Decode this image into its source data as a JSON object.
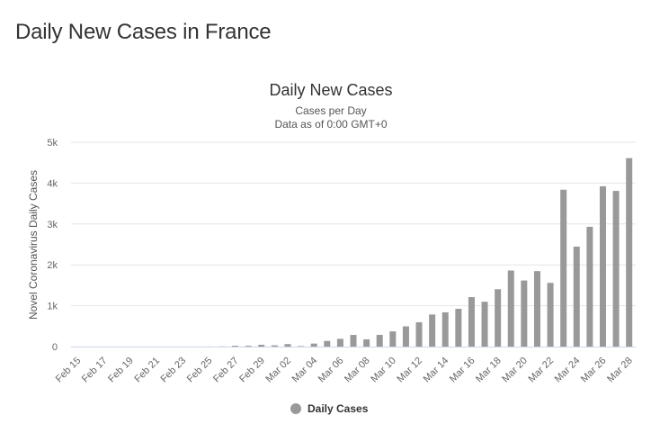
{
  "page": {
    "title": "Daily New Cases in France"
  },
  "chart_data": {
    "type": "bar",
    "title": "Daily New Cases",
    "subtitle": [
      "Cases per Day",
      "Data as of 0:00 GMT+0"
    ],
    "ylabel": "Novel Coronavirus Daily Cases",
    "xlabel": "",
    "ylim": [
      0,
      5000
    ],
    "yticks": [
      0,
      1000,
      2000,
      3000,
      4000,
      5000
    ],
    "ytick_labels": [
      "0",
      "1k",
      "2k",
      "3k",
      "4k",
      "5k"
    ],
    "grid": true,
    "legend": {
      "position": "bottom-center",
      "entries": [
        "Daily Cases"
      ]
    },
    "bar_color": "#999999",
    "categories": [
      "Feb 15",
      "Feb 16",
      "Feb 17",
      "Feb 18",
      "Feb 19",
      "Feb 20",
      "Feb 21",
      "Feb 22",
      "Feb 23",
      "Feb 24",
      "Feb 25",
      "Feb 26",
      "Feb 27",
      "Feb 28",
      "Feb 29",
      "Mar 01",
      "Mar 02",
      "Mar 03",
      "Mar 04",
      "Mar 05",
      "Mar 06",
      "Mar 07",
      "Mar 08",
      "Mar 09",
      "Mar 10",
      "Mar 11",
      "Mar 12",
      "Mar 13",
      "Mar 14",
      "Mar 15",
      "Mar 16",
      "Mar 17",
      "Mar 18",
      "Mar 19",
      "Mar 20",
      "Mar 21",
      "Mar 22",
      "Mar 23",
      "Mar 24",
      "Mar 25",
      "Mar 26",
      "Mar 27",
      "Mar 28"
    ],
    "visible_tick_labels": [
      "Feb 15",
      "Feb 17",
      "Feb 19",
      "Feb 21",
      "Feb 23",
      "Feb 25",
      "Feb 27",
      "Feb 29",
      "Mar 02",
      "Mar 04",
      "Mar 06",
      "Mar 08",
      "Mar 10",
      "Mar 12",
      "Mar 14",
      "Mar 16",
      "Mar 18",
      "Mar 20",
      "Mar 22",
      "Mar 24",
      "Mar 26",
      "Mar 28"
    ],
    "series": [
      {
        "name": "Daily Cases",
        "values": [
          0,
          0,
          0,
          0,
          0,
          0,
          0,
          0,
          0,
          0,
          2,
          4,
          20,
          19,
          43,
          30,
          61,
          12,
          73,
          138,
          190,
          285,
          177,
          286,
          372,
          495,
          595,
          785,
          838,
          924,
          1210,
          1097,
          1404,
          1861,
          1617,
          1847,
          1559,
          3838,
          2446,
          2931,
          3922,
          3809,
          4611
        ]
      }
    ]
  }
}
